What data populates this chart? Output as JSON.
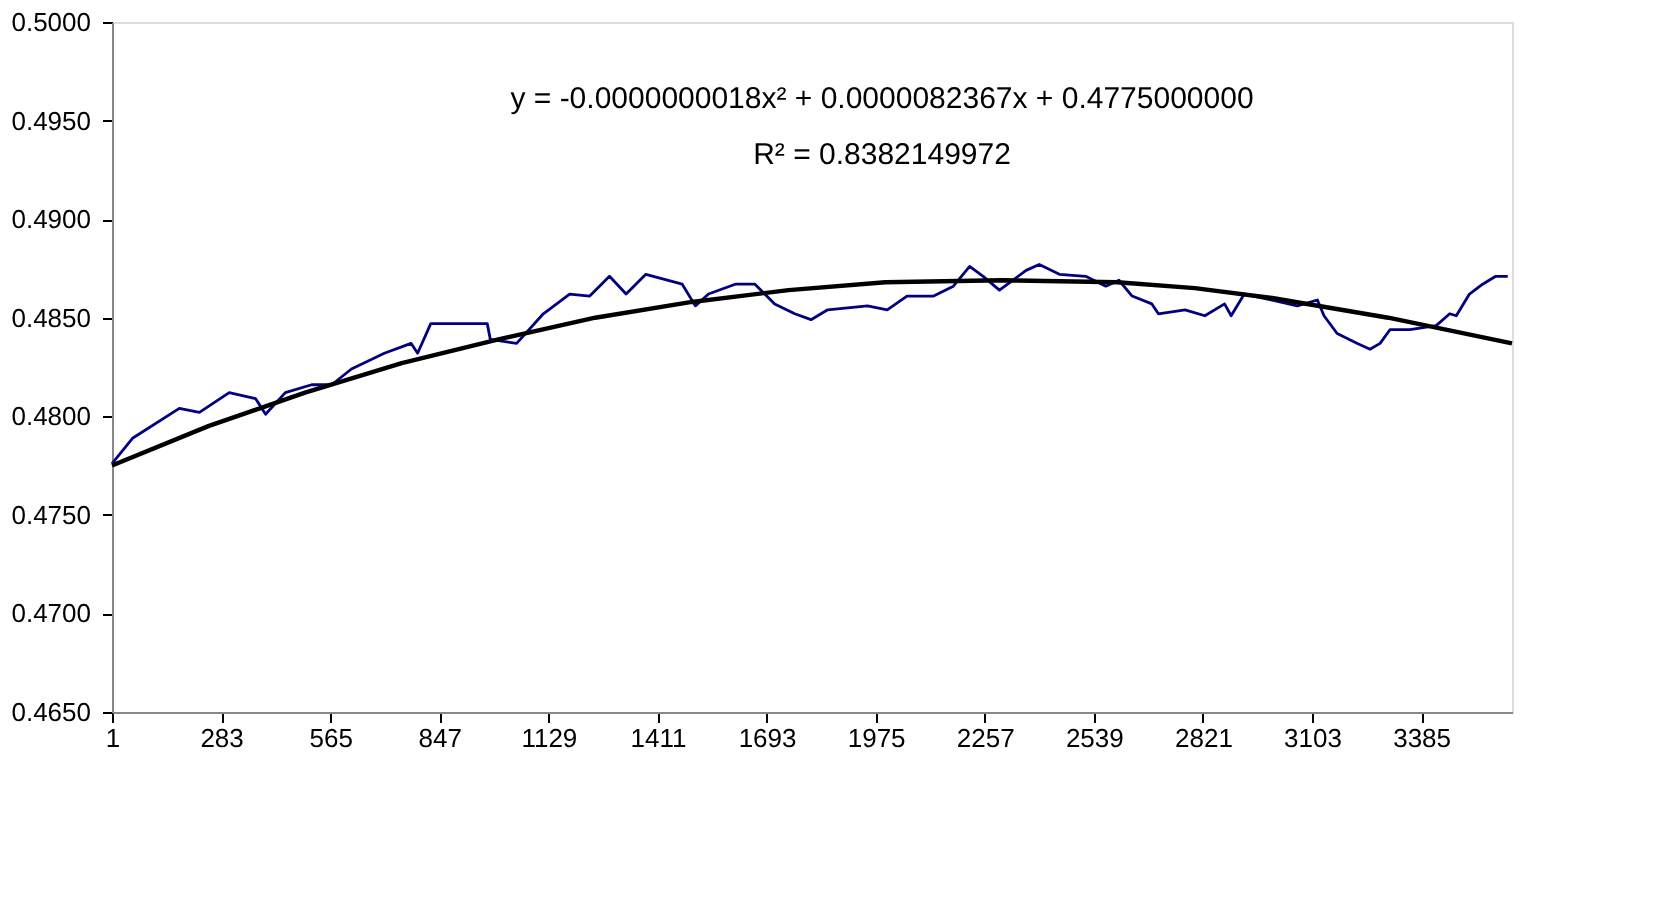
{
  "chart_data": {
    "type": "line",
    "annotations": [
      "y = -0.0000000018x² + 0.0000082367x + 0.4775000000",
      "R² = 0.8382149972"
    ],
    "xlim": [
      1,
      3620
    ],
    "xticks": [
      1,
      283,
      565,
      847,
      1129,
      1411,
      1693,
      1975,
      2257,
      2539,
      2821,
      3103,
      3385
    ],
    "ylim": [
      0.465,
      0.5
    ],
    "yticks": [
      {
        "value": 0.465,
        "label": "0.4650"
      },
      {
        "value": 0.47,
        "label": "0.4700"
      },
      {
        "value": 0.475,
        "label": "0.4750"
      },
      {
        "value": 0.48,
        "label": "0.4800"
      },
      {
        "value": 0.485,
        "label": "0.4850"
      },
      {
        "value": 0.49,
        "label": "0.4900"
      },
      {
        "value": 0.495,
        "label": "0.4950"
      },
      {
        "value": 0.5,
        "label": "0.5000"
      }
    ],
    "grid": false,
    "marker": "none",
    "line_style": "solid",
    "series": [
      {
        "color": "#000080",
        "x": [
          1,
          55,
          175,
          227,
          304,
          372,
          398,
          449,
          517,
          569,
          620,
          705,
          774,
          791,
          825,
          911,
          971,
          979,
          1047,
          1116,
          1184,
          1236,
          1287,
          1330,
          1381,
          1475,
          1509,
          1543,
          1612,
          1663,
          1714,
          1766,
          1808,
          1851,
          1954,
          2005,
          2056,
          2125,
          2176,
          2218,
          2253,
          2295,
          2364,
          2398,
          2450,
          2518,
          2570,
          2604,
          2638,
          2689,
          2706,
          2775,
          2826,
          2877,
          2894,
          2928,
          2997,
          3065,
          3117,
          3134,
          3168,
          3219,
          3253,
          3279,
          3305,
          3356,
          3424,
          3459,
          3476,
          3510,
          3544,
          3578,
          3609
        ],
        "values": [
          0.4776,
          0.4789,
          0.4804,
          0.4802,
          0.4812,
          0.4809,
          0.4801,
          0.4812,
          0.4816,
          0.4816,
          0.4824,
          0.4832,
          0.4837,
          0.4832,
          0.4847,
          0.4847,
          0.4847,
          0.4839,
          0.4837,
          0.4852,
          0.4862,
          0.4861,
          0.4871,
          0.4862,
          0.4872,
          0.4867,
          0.4856,
          0.4862,
          0.4867,
          0.4867,
          0.4857,
          0.4852,
          0.4849,
          0.4854,
          0.4856,
          0.4854,
          0.4861,
          0.4861,
          0.4866,
          0.4876,
          0.4871,
          0.4864,
          0.4874,
          0.4877,
          0.4872,
          0.4871,
          0.4866,
          0.4869,
          0.4861,
          0.4857,
          0.4852,
          0.4854,
          0.4851,
          0.4857,
          0.4851,
          0.4862,
          0.4859,
          0.4856,
          0.4859,
          0.4851,
          0.4842,
          0.4837,
          0.4834,
          0.4837,
          0.4844,
          0.4844,
          0.4846,
          0.4852,
          0.4851,
          0.4862,
          0.4867,
          0.4871,
          0.4871
        ]
      },
      {
        "color": "#000000",
        "x": [
          1,
          250,
          500,
          750,
          1000,
          1250,
          1500,
          1750,
          2000,
          2300,
          2600,
          2800,
          3000,
          3300,
          3620
        ],
        "values": [
          0.4775,
          0.4795,
          0.4812,
          0.4827,
          0.4839,
          0.485,
          0.4858,
          0.4864,
          0.4868,
          0.4869,
          0.4868,
          0.4865,
          0.486,
          0.485,
          0.4837
        ]
      }
    ]
  }
}
